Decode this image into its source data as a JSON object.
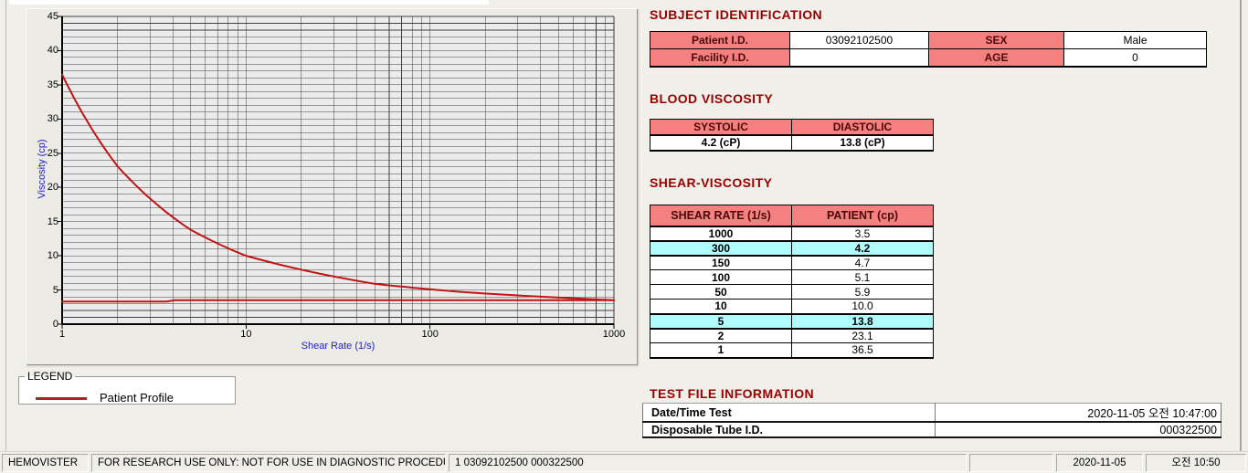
{
  "chart": {
    "y_axis_title": "Viscosity (cp)",
    "x_axis_title": "Shear Rate (1/s)"
  },
  "chart_data": {
    "type": "line",
    "title": "",
    "xlabel": "Shear Rate (1/s)",
    "ylabel": "Viscosity (cp)",
    "x_scale": "log",
    "xlim": [
      1,
      1000
    ],
    "ylim": [
      0,
      45
    ],
    "x_ticks": [
      1,
      10,
      100,
      1000
    ],
    "y_ticks": [
      0,
      5,
      10,
      15,
      20,
      25,
      30,
      35,
      40,
      45
    ],
    "grid": "dense log graph paper, minor y every 1 cp, minor x at 2-9 per decade",
    "legend_position": "below-left",
    "series": [
      {
        "name": "Patient Profile",
        "color": "#c01515",
        "x": [
          1,
          2,
          5,
          10,
          50,
          100,
          150,
          300,
          1000
        ],
        "y": [
          36.5,
          23.1,
          13.8,
          10.0,
          5.9,
          5.1,
          4.7,
          4.2,
          3.5
        ]
      }
    ],
    "flat_line": {
      "color": "#c01515",
      "segments": [
        {
          "x1": 1,
          "x2": 3.7,
          "cp": 3.3
        },
        {
          "x1": 4.1,
          "x2": 1000,
          "cp": 3.5
        }
      ]
    }
  },
  "legend": {
    "title": "LEGEND",
    "entries": [
      {
        "label": "Patient Profile",
        "color": "#b51f1f"
      }
    ]
  },
  "subject": {
    "title": "SUBJECT IDENTIFICATION",
    "rows": [
      {
        "label1": "Patient I.D.",
        "value1": "03092102500",
        "label2": "SEX",
        "value2": "Male"
      },
      {
        "label1": "Facility I.D.",
        "value1": "",
        "label2": "AGE",
        "value2": "0"
      }
    ]
  },
  "blood_viscosity": {
    "title": "BLOOD VISCOSITY",
    "headers": [
      "SYSTOLIC",
      "DIASTOLIC"
    ],
    "values": [
      "4.2 (cP)",
      "13.8 (cP)"
    ]
  },
  "shear_viscosity": {
    "title": "SHEAR-VISCOSITY",
    "headers": [
      "SHEAR RATE (1/s)",
      "PATIENT (cp)"
    ],
    "rows": [
      {
        "rate": "1000",
        "value": "3.5",
        "highlight": false
      },
      {
        "rate": "300",
        "value": "4.2",
        "highlight": true
      },
      {
        "rate": "150",
        "value": "4.7",
        "highlight": false
      },
      {
        "rate": "100",
        "value": "5.1",
        "highlight": false
      },
      {
        "rate": "50",
        "value": "5.9",
        "highlight": false
      },
      {
        "rate": "10",
        "value": "10.0",
        "highlight": false
      },
      {
        "rate": "5",
        "value": "13.8",
        "highlight": true
      },
      {
        "rate": "2",
        "value": "23.1",
        "highlight": false
      },
      {
        "rate": "1",
        "value": "36.5",
        "highlight": false
      }
    ]
  },
  "test_file": {
    "title": "TEST FILE INFORMATION",
    "rows": [
      {
        "label": "Date/Time Test",
        "value": "2020-11-05  오전 10:47:00"
      },
      {
        "label": "Disposable Tube I.D.",
        "value": "000322500"
      }
    ]
  },
  "status_bar": {
    "app_name": "HEMOVISTER",
    "notice": "FOR RESEARCH USE ONLY: NOT FOR USE IN DIAGNOSTIC PROCEDURES",
    "record_info": "1  03092102500  000322500",
    "empty": "",
    "date": "2020-11-05",
    "time": "오전 10:50"
  },
  "colors": {
    "section_title": "#990000",
    "table_header_bg": "#f48080",
    "highlight_bg": "#b0fcfc",
    "series_red": "#c01515",
    "axis_title_blue": "#2020cc",
    "panel_bg": "#ecebe6"
  }
}
